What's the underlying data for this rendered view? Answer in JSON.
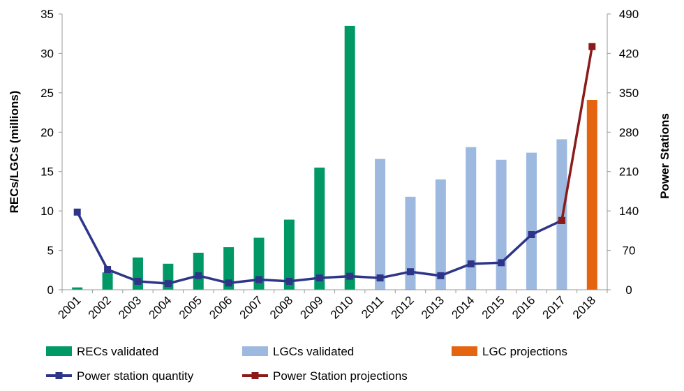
{
  "chart_data": {
    "type": "bar",
    "categories": [
      "2001",
      "2002",
      "2003",
      "2004",
      "2005",
      "2006",
      "2007",
      "2008",
      "2009",
      "2010",
      "2011",
      "2012",
      "2013",
      "2014",
      "2015",
      "2016",
      "2017",
      "2018"
    ],
    "series": [
      {
        "name": "RECs validated",
        "kind": "bar",
        "axis": "left",
        "color": "#009966",
        "values": [
          0.3,
          2.2,
          4.1,
          3.3,
          4.7,
          5.4,
          6.6,
          8.9,
          15.5,
          33.5,
          null,
          null,
          null,
          null,
          null,
          null,
          null,
          null
        ]
      },
      {
        "name": "LGCs validated",
        "kind": "bar",
        "axis": "left",
        "color": "#9DB9E0",
        "values": [
          null,
          null,
          null,
          null,
          null,
          null,
          null,
          null,
          null,
          null,
          16.6,
          11.8,
          14.0,
          18.1,
          16.5,
          17.4,
          19.1,
          null
        ]
      },
      {
        "name": "LGC projections",
        "kind": "bar",
        "axis": "left",
        "color": "#E5640F",
        "values": [
          null,
          null,
          null,
          null,
          null,
          null,
          null,
          null,
          null,
          null,
          null,
          null,
          null,
          null,
          null,
          null,
          null,
          24.1
        ]
      },
      {
        "name": "Power station quantity",
        "kind": "line",
        "axis": "right",
        "color": "#2E3589",
        "values": [
          138,
          36,
          15,
          11,
          25,
          12,
          18,
          15,
          21,
          24,
          21,
          32,
          25,
          46,
          48,
          98,
          123,
          null
        ]
      },
      {
        "name": "Power Station projections",
        "kind": "line",
        "axis": "right",
        "color": "#8B1A1A",
        "values": [
          null,
          null,
          null,
          null,
          null,
          null,
          null,
          null,
          null,
          null,
          null,
          null,
          null,
          null,
          null,
          null,
          123,
          432
        ]
      }
    ],
    "y_left": {
      "label": "RECs/LGCs (millions)",
      "ylim": [
        0,
        35
      ],
      "ticks": [
        "0",
        "5",
        "10",
        "15",
        "20",
        "25",
        "30",
        "35"
      ]
    },
    "y_right": {
      "label": "Power Stations",
      "ylim": [
        0,
        490
      ],
      "ticks": [
        "0",
        "70",
        "140",
        "210",
        "280",
        "350",
        "420",
        "490"
      ]
    },
    "legend": {
      "position": "bottom",
      "entries": [
        "RECs validated",
        "LGCs validated",
        "LGC projections",
        "Power station quantity",
        "Power Station projections"
      ]
    },
    "grid": false
  }
}
